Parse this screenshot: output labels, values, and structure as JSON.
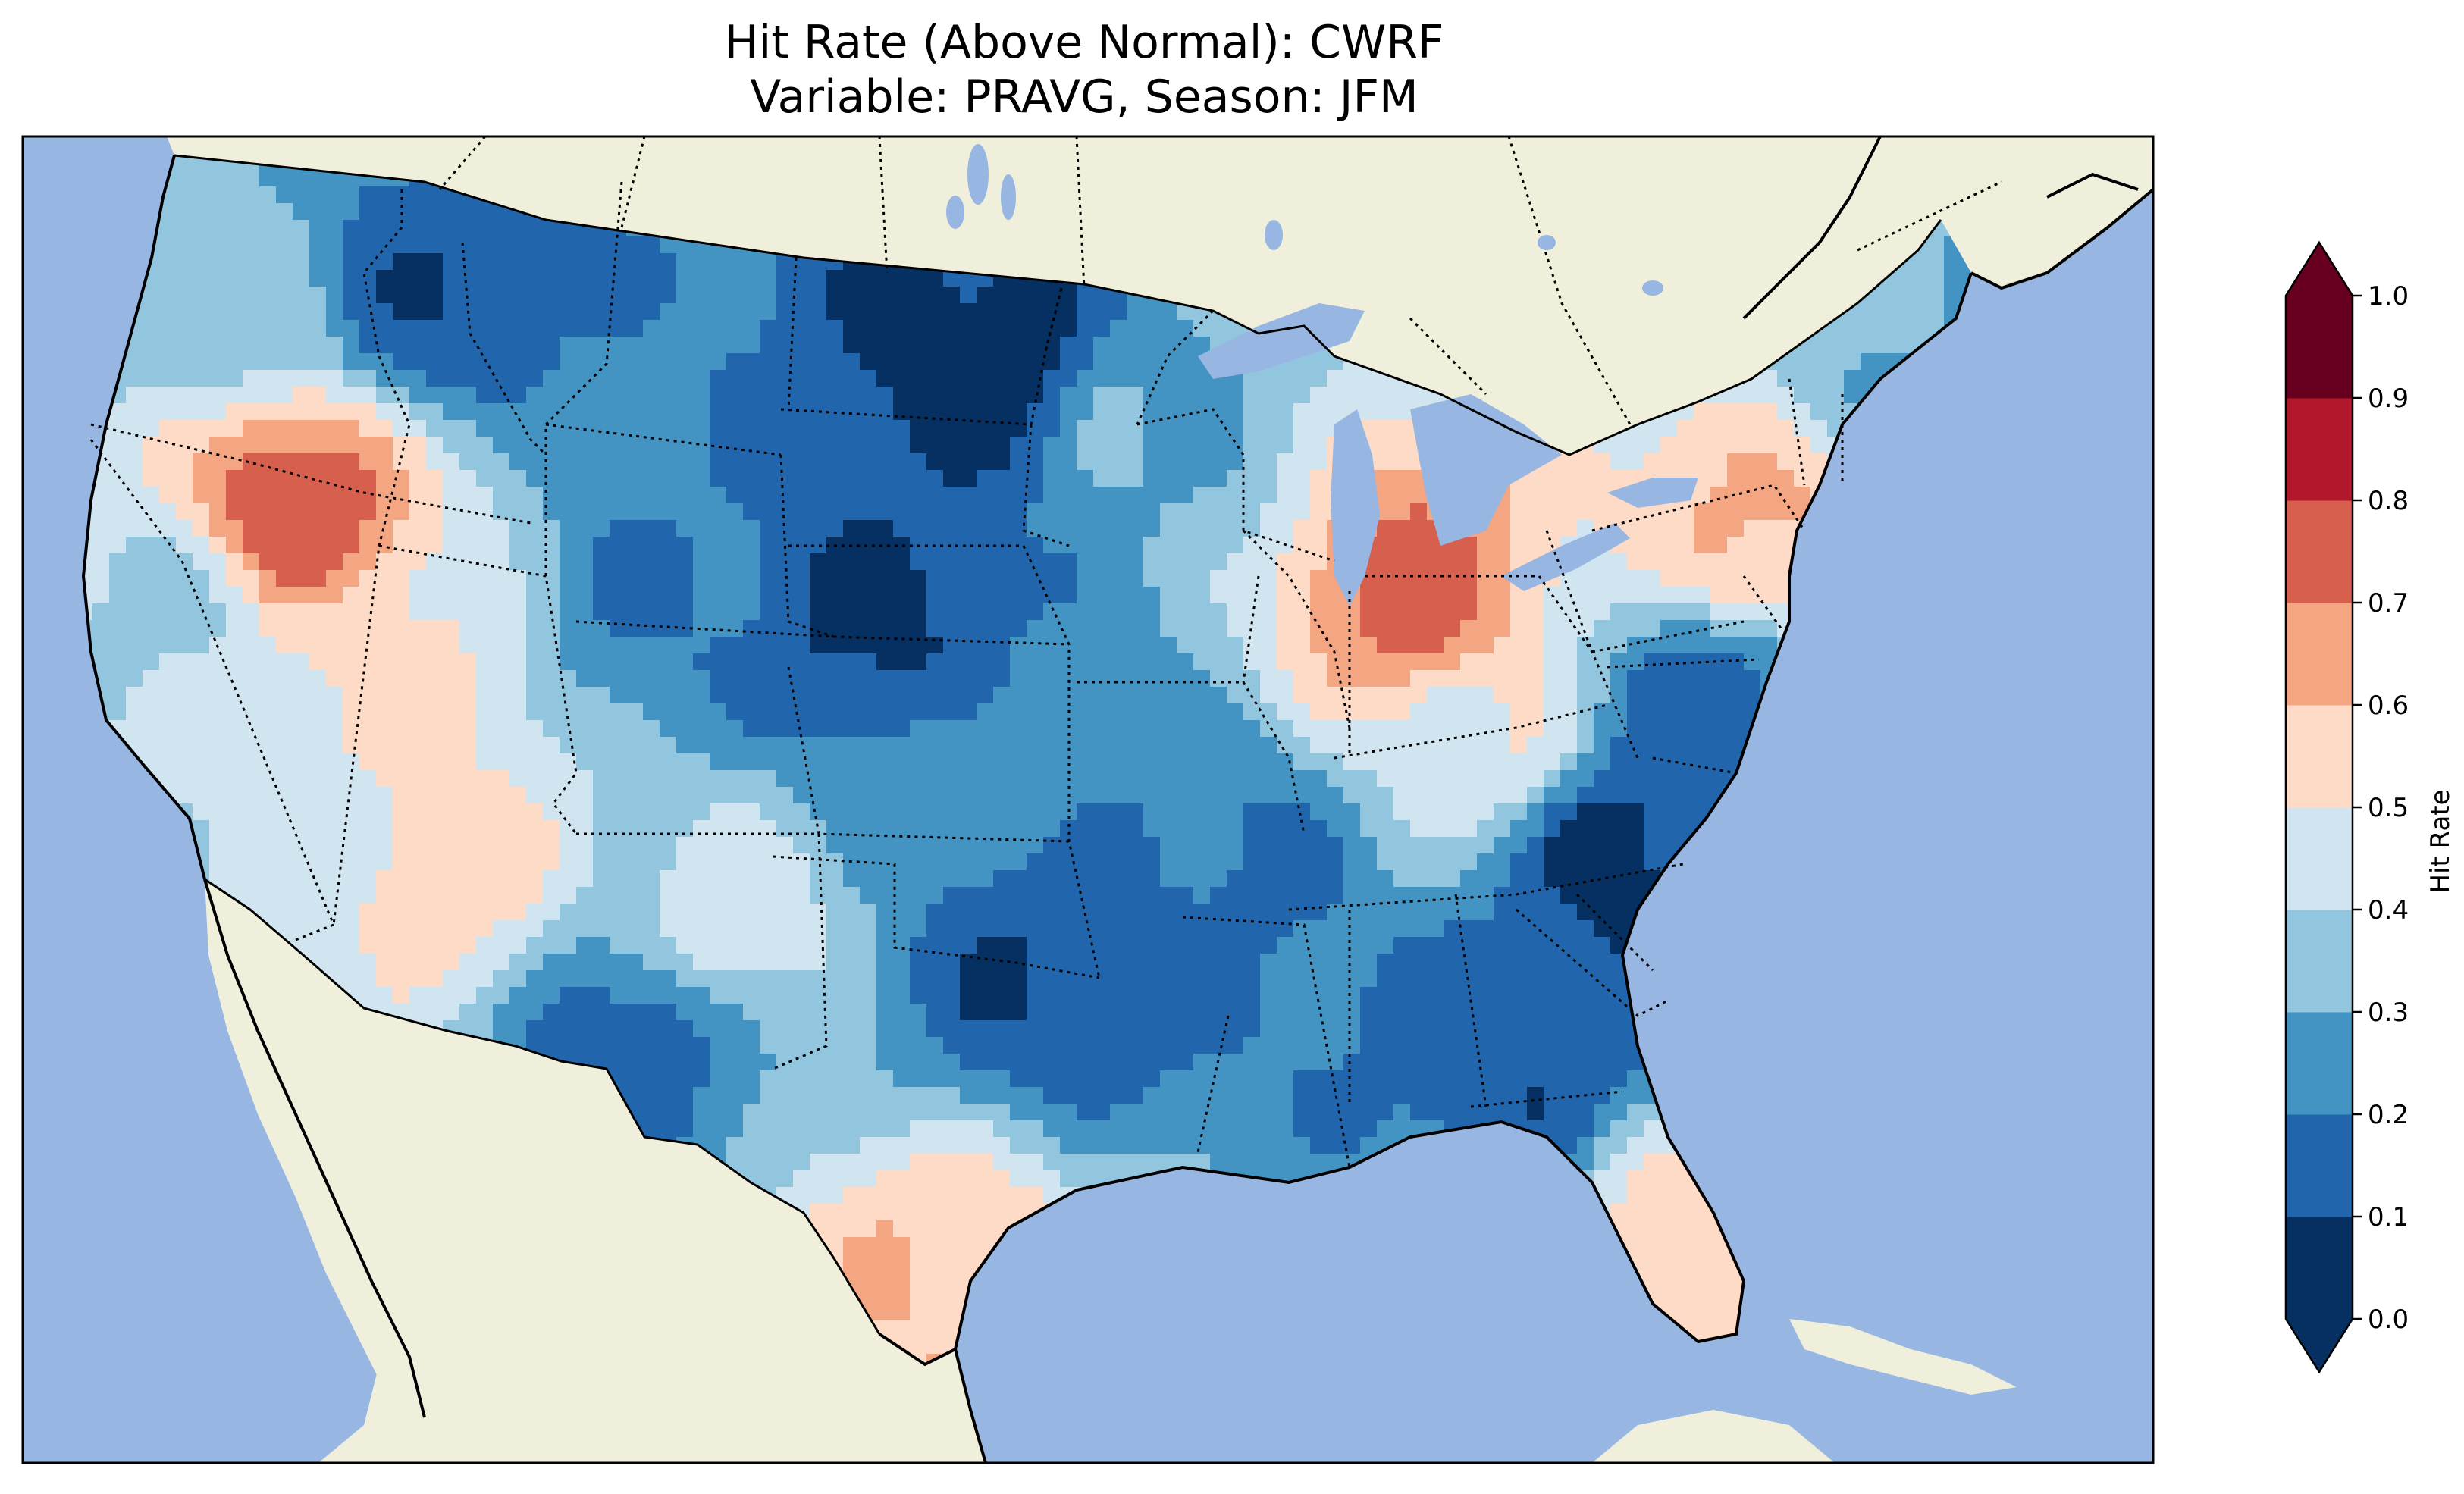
{
  "title": {
    "line1": "Hit Rate (Above Normal): CWRF",
    "line2": "Variable: PRAVG, Season: JFM"
  },
  "colors": {
    "ocean": "#97b6e1",
    "land": "#efefdb",
    "lakes": "#97b6e1"
  },
  "colorbar": {
    "label": "Hit Rate",
    "min": 0.0,
    "max": 1.0,
    "extend": "both",
    "ticks": [
      "0.0",
      "0.1",
      "0.2",
      "0.3",
      "0.4",
      "0.5",
      "0.6",
      "0.7",
      "0.8",
      "0.9",
      "1.0"
    ],
    "bins": [
      {
        "from": 0.0,
        "to": 0.1,
        "color": "#053061"
      },
      {
        "from": 0.1,
        "to": 0.2,
        "color": "#2166ac"
      },
      {
        "from": 0.2,
        "to": 0.3,
        "color": "#4393c3"
      },
      {
        "from": 0.3,
        "to": 0.4,
        "color": "#92c5de"
      },
      {
        "from": 0.4,
        "to": 0.5,
        "color": "#d1e5f0"
      },
      {
        "from": 0.5,
        "to": 0.6,
        "color": "#fddbc7"
      },
      {
        "from": 0.6,
        "to": 0.7,
        "color": "#f4a582"
      },
      {
        "from": 0.7,
        "to": 0.8,
        "color": "#d6604d"
      },
      {
        "from": 0.8,
        "to": 0.9,
        "color": "#b2182b"
      },
      {
        "from": 0.9,
        "to": 1.0,
        "color": "#67001f"
      }
    ],
    "under_color": "#053061",
    "over_color": "#67001f"
  },
  "map_regions": [
    {
      "name": "pacific-northwest",
      "value": 0.35
    },
    {
      "name": "northern-california",
      "value": 0.38
    },
    {
      "name": "southern-california",
      "value": 0.42
    },
    {
      "name": "oregon-idaho-border",
      "value": 0.76
    },
    {
      "name": "nevada",
      "value": 0.52
    },
    {
      "name": "northern-idaho-montana",
      "value": 0.12
    },
    {
      "name": "utah-colorado",
      "value": 0.2
    },
    {
      "name": "colorado-central",
      "value": 0.08
    },
    {
      "name": "arizona",
      "value": 0.55
    },
    {
      "name": "new-mexico",
      "value": 0.45
    },
    {
      "name": "west-texas",
      "value": 0.15
    },
    {
      "name": "north-dakota",
      "value": 0.05
    },
    {
      "name": "minnesota",
      "value": 0.3
    },
    {
      "name": "great-plains",
      "value": 0.25
    },
    {
      "name": "oklahoma",
      "value": 0.1
    },
    {
      "name": "arkansas-missouri",
      "value": 0.18
    },
    {
      "name": "michigan-indiana",
      "value": 0.74
    },
    {
      "name": "ohio-valley",
      "value": 0.48
    },
    {
      "name": "carolinas",
      "value": 0.06
    },
    {
      "name": "georgia-alabama",
      "value": 0.12
    },
    {
      "name": "florida",
      "value": 0.55
    },
    {
      "name": "gulf-coast-texas",
      "value": 0.6
    },
    {
      "name": "new-england",
      "value": 0.3
    },
    {
      "name": "mid-atlantic",
      "value": 0.15
    },
    {
      "name": "pennsylvania-newjersey",
      "value": 0.62
    }
  ]
}
